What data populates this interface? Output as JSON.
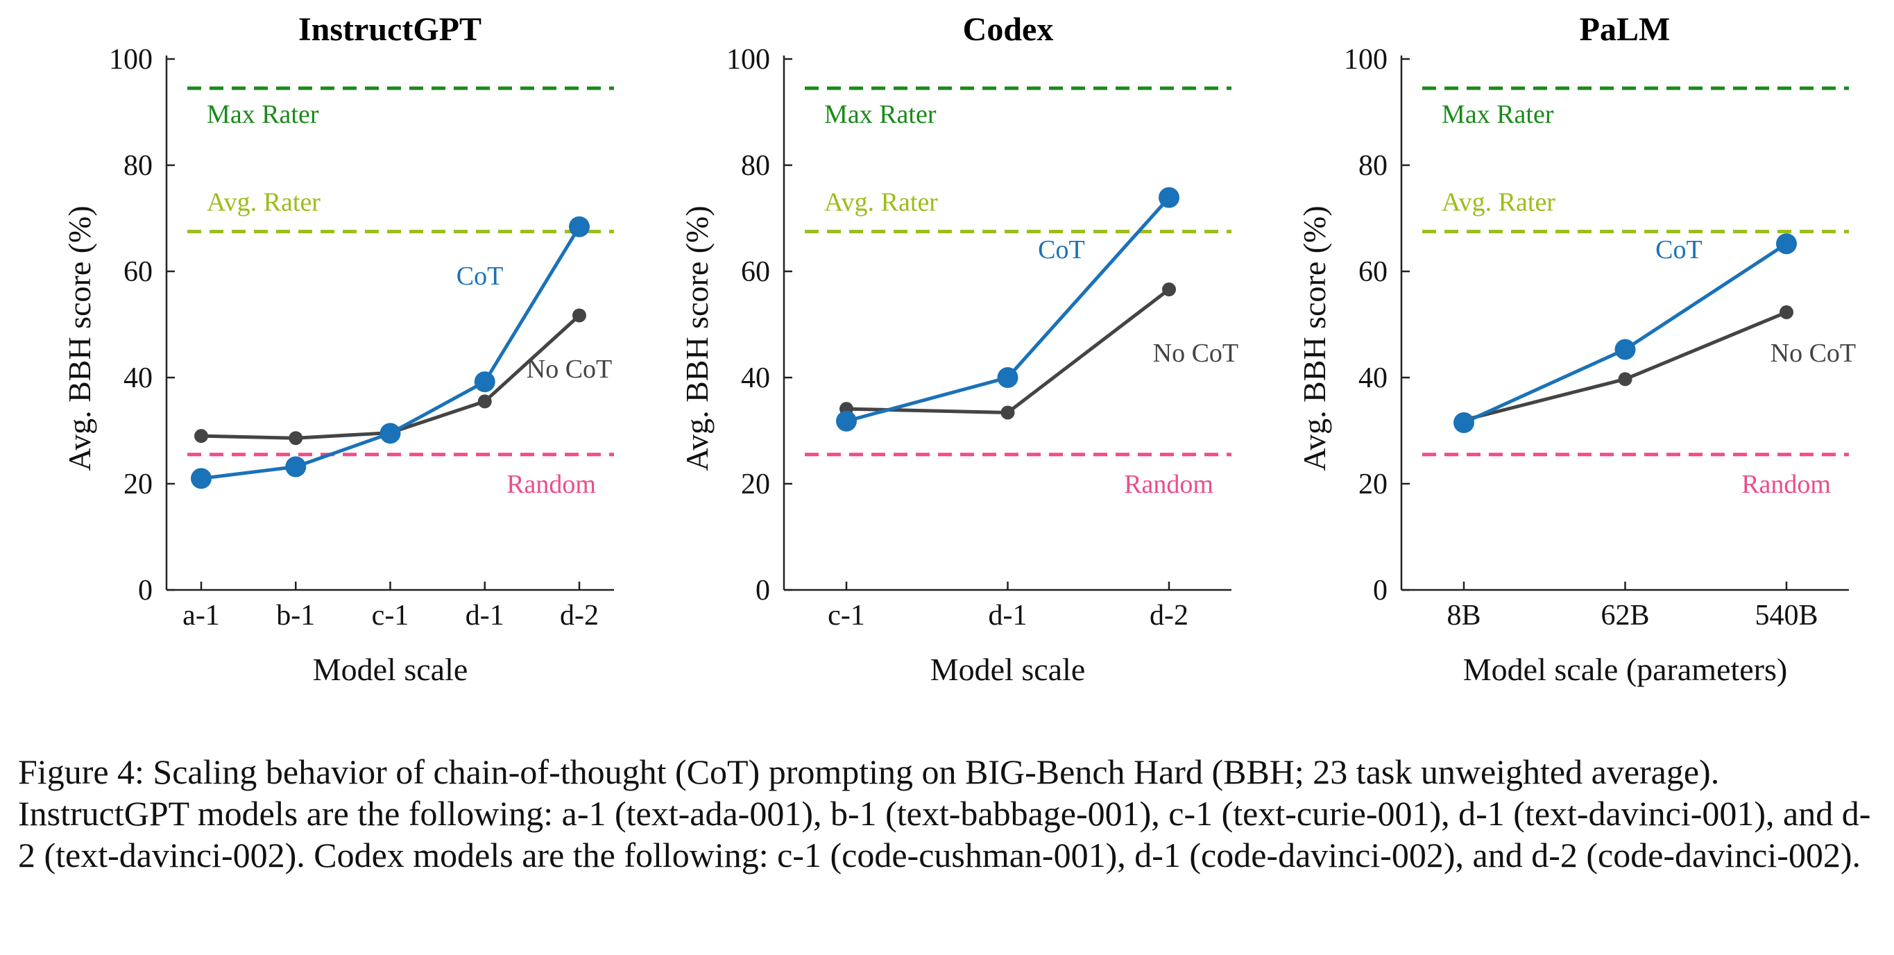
{
  "chart_data": [
    {
      "type": "line",
      "title": "InstructGPT",
      "xlabel": "Model scale",
      "ylabel": "Avg. BBH score (%)",
      "categories": [
        "a-1",
        "b-1",
        "c-1",
        "d-1",
        "d-2"
      ],
      "ylim": [
        0,
        100
      ],
      "yticks": [
        0,
        20,
        40,
        60,
        80,
        100
      ],
      "grid": false,
      "series": [
        {
          "name": "CoT",
          "color": "#1a72b8",
          "marker": "large-dot",
          "values": [
            21,
            23.2,
            29.5,
            39.2,
            68.4
          ]
        },
        {
          "name": "No CoT",
          "color": "#444444",
          "marker": "small-dot",
          "values": [
            29,
            28.6,
            29.6,
            35.5,
            51.7
          ]
        }
      ],
      "reference_lines": [
        {
          "name": "Max Rater",
          "value": 94.5,
          "color": "#1a8a1a"
        },
        {
          "name": "Avg. Rater",
          "value": 67.5,
          "color": "#9bbd1a"
        },
        {
          "name": "Random",
          "value": 25.5,
          "color": "#ec4d8a"
        }
      ]
    },
    {
      "type": "line",
      "title": "Codex",
      "xlabel": "Model scale",
      "ylabel": "Avg. BBH score (%)",
      "categories": [
        "c-1",
        "d-1",
        "d-2"
      ],
      "ylim": [
        0,
        100
      ],
      "yticks": [
        0,
        20,
        40,
        60,
        80,
        100
      ],
      "grid": false,
      "series": [
        {
          "name": "CoT",
          "color": "#1a72b8",
          "marker": "large-dot",
          "values": [
            31.8,
            40,
            73.9
          ]
        },
        {
          "name": "No CoT",
          "color": "#444444",
          "marker": "small-dot",
          "values": [
            34.1,
            33.4,
            56.6
          ]
        }
      ],
      "reference_lines": [
        {
          "name": "Max Rater",
          "value": 94.5,
          "color": "#1a8a1a"
        },
        {
          "name": "Avg. Rater",
          "value": 67.5,
          "color": "#9bbd1a"
        },
        {
          "name": "Random",
          "value": 25.5,
          "color": "#ec4d8a"
        }
      ]
    },
    {
      "type": "line",
      "title": "PaLM",
      "xlabel": "Model scale (parameters)",
      "ylabel": "Avg. BBH score (%)",
      "categories": [
        "8B",
        "62B",
        "540B"
      ],
      "ylim": [
        0,
        100
      ],
      "yticks": [
        0,
        20,
        40,
        60,
        80,
        100
      ],
      "grid": false,
      "series": [
        {
          "name": "CoT",
          "color": "#1a72b8",
          "marker": "large-dot",
          "values": [
            31.5,
            45.3,
            65.2
          ]
        },
        {
          "name": "No CoT",
          "color": "#444444",
          "marker": "small-dot",
          "values": [
            32,
            39.7,
            52.3
          ]
        }
      ],
      "reference_lines": [
        {
          "name": "Max Rater",
          "value": 94.5,
          "color": "#1a8a1a"
        },
        {
          "name": "Avg. Rater",
          "value": 67.5,
          "color": "#9bbd1a"
        },
        {
          "name": "Random",
          "value": 25.5,
          "color": "#ec4d8a"
        }
      ]
    }
  ],
  "caption": "Figure 4: Scaling behavior of chain-of-thought (CoT) prompting on BIG-Bench Hard (BBH; 23 task unweighted average). InstructGPT models are the following: a-1 (text-ada-001), b-1 (text-babbage-001), c-1 (text-curie-001), d-1 (text-davinci-001), and d-2 (text-davinci-002). Codex models are the following: c-1 (code-cushman-001), d-1 (code-davinci-002), and d-2 (code-davinci-002)."
}
